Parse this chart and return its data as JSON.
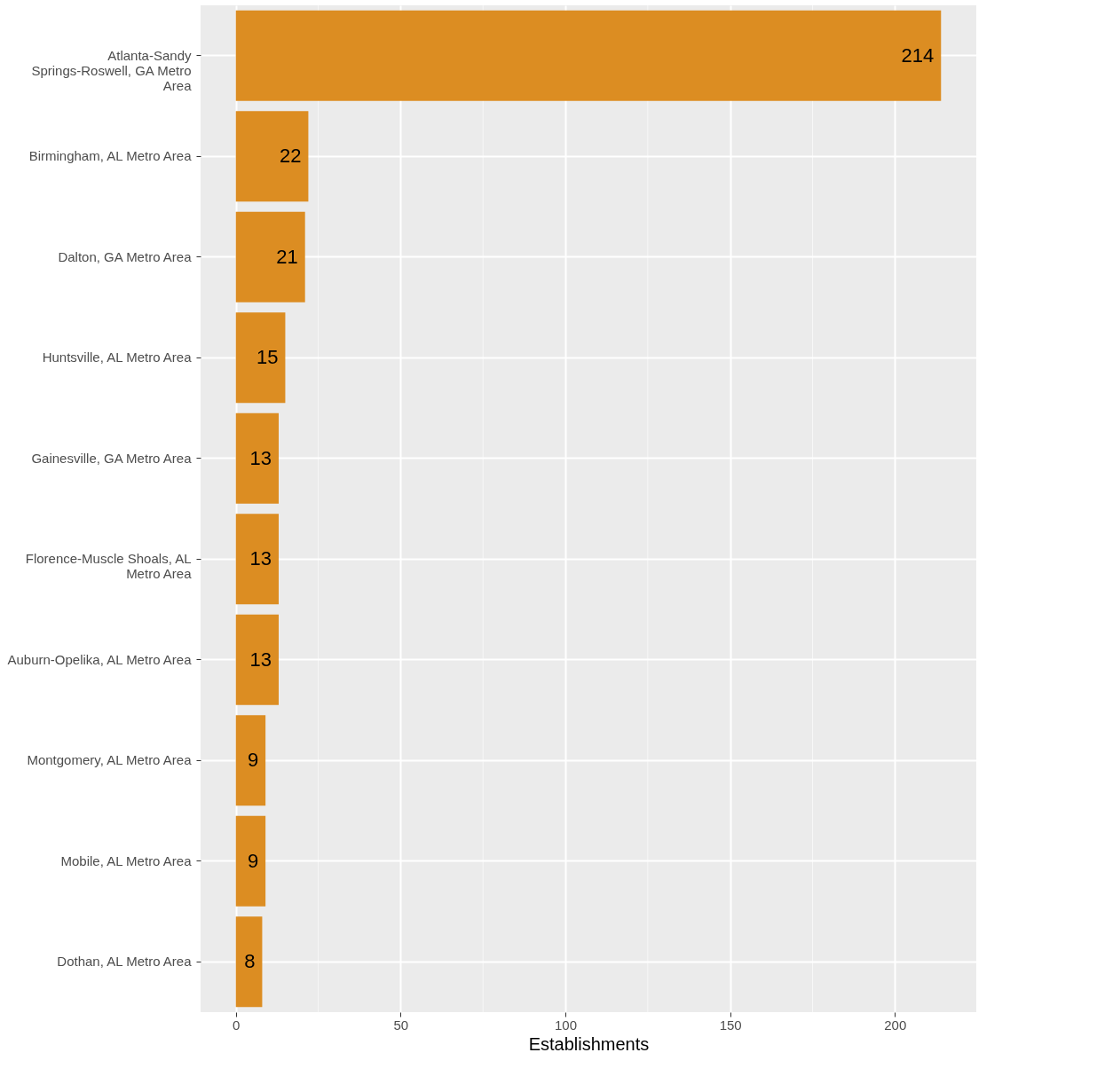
{
  "chart_data": {
    "type": "bar",
    "orientation": "horizontal",
    "xlabel": "Establishments",
    "categories": [
      "Atlanta-Sandy Springs-Roswell, GA Metro Area",
      "Birmingham, AL Metro Area",
      "Dalton, GA Metro Area",
      "Huntsville, AL Metro Area",
      "Gainesville, GA Metro Area",
      "Florence-Muscle Shoals, AL Metro Area",
      "Auburn-Opelika, AL Metro Area",
      "Montgomery, AL Metro Area",
      "Mobile, AL Metro Area",
      "Dothan, AL Metro Area"
    ],
    "values": [
      214,
      22,
      21,
      15,
      13,
      13,
      13,
      9,
      9,
      8
    ],
    "color": "#dc8d22",
    "xlim": [
      -10.7,
      224.7
    ],
    "xticks": [
      0,
      50,
      100,
      150,
      200
    ],
    "grid": true,
    "data_labels": true
  }
}
